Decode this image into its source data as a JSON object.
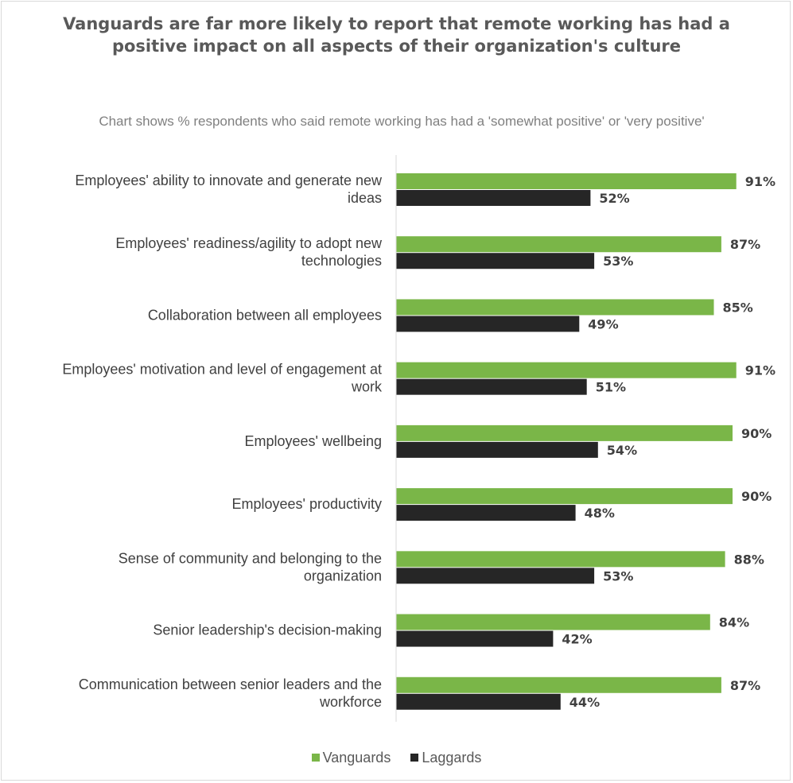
{
  "chart_data": {
    "type": "bar",
    "orientation": "horizontal",
    "title": "Vanguards are far more likely to report that remote working has had a positive impact on all aspects of their organization's culture",
    "subtitle": "Chart shows % respondents who said remote working has had a 'somewhat positive' or 'very positive'",
    "categories": [
      "Employees' ability to innovate and generate new ideas",
      "Employees' readiness/agility to adopt new technologies",
      "Collaboration between all employees",
      "Employees' motivation and level of engagement at work",
      "Employees' wellbeing",
      "Employees' productivity",
      "Sense of community and belonging to the organization",
      "Senior leadership's decision-making",
      "Communication between senior leaders and the workforce"
    ],
    "series": [
      {
        "name": "Vanguards",
        "color": "#7ab648",
        "values": [
          91,
          87,
          85,
          91,
          90,
          90,
          88,
          84,
          87
        ]
      },
      {
        "name": "Laggards",
        "color": "#262626",
        "values": [
          52,
          53,
          49,
          51,
          54,
          48,
          53,
          42,
          44
        ]
      }
    ],
    "value_format": "%",
    "xlim": [
      0,
      100
    ],
    "grid": false,
    "legend_position": "bottom"
  }
}
